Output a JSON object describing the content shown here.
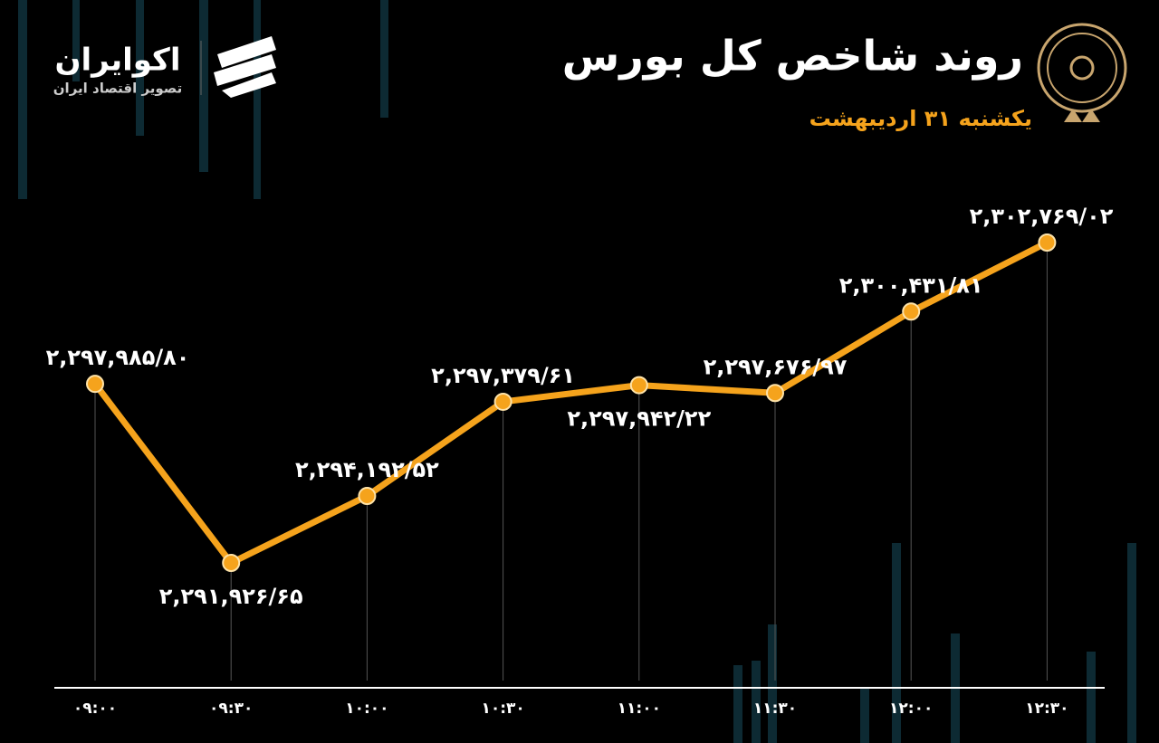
{
  "header": {
    "brand": "اکوایران",
    "tagline": "تصویر اقتصاد ایران"
  },
  "chart_data": {
    "type": "line",
    "title": "روند شاخص کل بورس",
    "subtitle": "یکشنبه ۳۱ اردیبهشت",
    "categories": [
      "۰۹:۰۰",
      "۰۹:۳۰",
      "۱۰:۰۰",
      "۱۰:۳۰",
      "۱۱:۰۰",
      "۱۱:۳۰",
      "۱۲:۰۰",
      "۱۲:۳۰"
    ],
    "values": [
      2297985.8,
      2291926.65,
      2294192.52,
      2297379.61,
      2297942.22,
      2297676.97,
      2300431.81,
      2302769.02
    ],
    "value_labels": [
      "۲,۲۹۷,۹۸۵/۸۰",
      "۲,۲۹۱,۹۲۶/۶۵",
      "۲,۲۹۴,۱۹۲/۵۲",
      "۲,۲۹۷,۳۷۹/۶۱",
      "۲,۲۹۷,۹۴۲/۲۲",
      "۲,۲۹۷,۶۷۶/۹۷",
      "۲,۳۰۰,۴۳۱/۸۱",
      "۲,۳۰۲,۷۶۹/۰۲"
    ],
    "color": "#f5a31c"
  }
}
